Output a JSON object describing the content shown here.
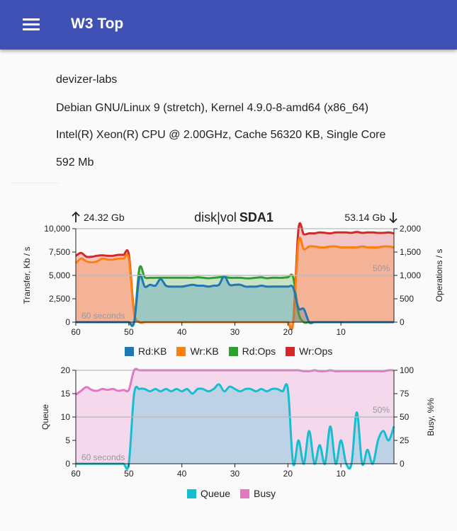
{
  "app": {
    "title": "W3 Top"
  },
  "info": [
    {
      "key": "host",
      "value": "devizer-labs"
    },
    {
      "key": "os",
      "value": "Debian GNU/Linux 9 (stretch), Kernel 4.9.0-8-amd64 (x86_64)"
    },
    {
      "key": "cpu",
      "value": "Intel(R) Xeon(R) CPU @ 2.00GHz, Cache 56320 KB, Single Core"
    },
    {
      "key": "ram",
      "value": "592 Mb"
    }
  ],
  "header": {
    "prefix": "disk|vol",
    "name": "SDA1",
    "read_total": "24.32 Gb",
    "write_total": "53.14 Gb"
  },
  "chart_data": [
    {
      "type": "area",
      "xlabel": "",
      "ylabel": "Transfer, Kb / s",
      "y2label": "Operations / s",
      "x": [
        60,
        59,
        58,
        57,
        56,
        55,
        54,
        53,
        52,
        51,
        50,
        49,
        48,
        47,
        46,
        45,
        44,
        43,
        42,
        41,
        40,
        39,
        38,
        37,
        36,
        35,
        34,
        33,
        32,
        31,
        30,
        29,
        28,
        27,
        26,
        25,
        24,
        23,
        22,
        21,
        20,
        19,
        18,
        17,
        16,
        15,
        14,
        13,
        12,
        11,
        10,
        9,
        8,
        7,
        6,
        5,
        4,
        3,
        2,
        1,
        0
      ],
      "xlim": [
        60,
        0
      ],
      "xticks": [
        60,
        50,
        40,
        30,
        20,
        10
      ],
      "ylim": [
        0,
        10000
      ],
      "yticks": [
        "0",
        "2,500",
        "5,000",
        "7,500",
        "10,000"
      ],
      "y2lim": [
        0,
        2000
      ],
      "y2ticks": [
        "0",
        "500",
        "1,000",
        "1,500",
        "2,000"
      ],
      "annotations": {
        "window": "60 seconds",
        "midline": "50%"
      },
      "legend_position": "bottom",
      "series": [
        {
          "name": "Rd:KB",
          "color": "#1f77b4",
          "axis": "left",
          "values": [
            0,
            0,
            0,
            0,
            0,
            0,
            0,
            0,
            0,
            0,
            0,
            0,
            4900,
            3800,
            4000,
            3900,
            4600,
            3900,
            3800,
            3800,
            3800,
            3900,
            4000,
            3900,
            3900,
            3800,
            3900,
            4000,
            4900,
            4000,
            4000,
            4000,
            3800,
            3800,
            3800,
            3900,
            3800,
            3800,
            3800,
            3800,
            3800,
            3700,
            1500,
            1400,
            0,
            0,
            0,
            0,
            0,
            0,
            0,
            0,
            0,
            0,
            0,
            0,
            0,
            0,
            0,
            0,
            0
          ]
        },
        {
          "name": "Wr:KB",
          "color": "#ff7f0e",
          "axis": "left",
          "values": [
            6300,
            6800,
            6500,
            6400,
            6500,
            6800,
            6700,
            6700,
            6800,
            6800,
            6800,
            1000,
            0,
            0,
            0,
            0,
            0,
            0,
            0,
            0,
            0,
            0,
            0,
            0,
            0,
            0,
            0,
            0,
            0,
            0,
            0,
            0,
            0,
            0,
            0,
            0,
            0,
            0,
            0,
            0,
            0,
            0,
            8600,
            7800,
            8100,
            8100,
            8000,
            8000,
            8100,
            8100,
            8000,
            8000,
            8000,
            8000,
            8100,
            8000,
            8000,
            8000,
            8100,
            8100,
            8000
          ]
        },
        {
          "name": "Rd:Ops",
          "color": "#2ca02c",
          "axis": "right",
          "values": [
            0,
            0,
            0,
            0,
            0,
            0,
            0,
            0,
            0,
            0,
            0,
            0,
            1150,
            960,
            950,
            950,
            950,
            950,
            950,
            950,
            950,
            950,
            950,
            960,
            950,
            940,
            950,
            960,
            970,
            950,
            950,
            950,
            940,
            940,
            950,
            960,
            940,
            950,
            950,
            950,
            960,
            960,
            200,
            0,
            0,
            0,
            0,
            0,
            0,
            0,
            0,
            0,
            0,
            0,
            0,
            0,
            0,
            0,
            0,
            0,
            0
          ]
        },
        {
          "name": "Wr:Ops",
          "color": "#d62728",
          "axis": "right",
          "values": [
            1420,
            1480,
            1400,
            1400,
            1420,
            1430,
            1420,
            1420,
            1440,
            1440,
            1450,
            200,
            0,
            0,
            0,
            0,
            0,
            0,
            0,
            0,
            0,
            0,
            0,
            0,
            0,
            0,
            0,
            0,
            0,
            0,
            0,
            0,
            0,
            0,
            0,
            0,
            0,
            0,
            0,
            0,
            0,
            0,
            2000,
            1880,
            1900,
            1900,
            1920,
            1910,
            1900,
            1920,
            1920,
            1920,
            1910,
            1930,
            1910,
            1920,
            1920,
            1910,
            1910,
            1920,
            1900
          ]
        }
      ]
    },
    {
      "type": "area",
      "xlabel": "",
      "ylabel": "Queue",
      "y2label": "Busy, %%",
      "x": [
        60,
        59,
        58,
        57,
        56,
        55,
        54,
        53,
        52,
        51,
        50,
        49,
        48,
        47,
        46,
        45,
        44,
        43,
        42,
        41,
        40,
        39,
        38,
        37,
        36,
        35,
        34,
        33,
        32,
        31,
        30,
        29,
        28,
        27,
        26,
        25,
        24,
        23,
        22,
        21,
        20,
        19,
        18,
        17,
        16,
        15,
        14,
        13,
        12,
        11,
        10,
        9,
        8,
        7,
        6,
        5,
        4,
        3,
        2,
        1,
        0
      ],
      "xlim": [
        60,
        0
      ],
      "xticks": [
        60,
        50,
        40,
        30,
        20,
        10
      ],
      "ylim": [
        0,
        20
      ],
      "yticks": [
        "0",
        "5",
        "10",
        "15",
        "20"
      ],
      "y2lim": [
        0,
        100
      ],
      "y2ticks": [
        "0",
        "25",
        "50",
        "75",
        "100"
      ],
      "annotations": {
        "window": "60 seconds",
        "midline": "50%"
      },
      "legend_position": "bottom",
      "series": [
        {
          "name": "Queue",
          "color": "#17becf",
          "axis": "left",
          "values": [
            0,
            0,
            0,
            0,
            0,
            0,
            0,
            0,
            0,
            0,
            0,
            15,
            16,
            16,
            15.5,
            16,
            15.5,
            16,
            15.5,
            16,
            15.5,
            16,
            15,
            16,
            16,
            15.5,
            16,
            17,
            15.5,
            16.5,
            16,
            15.5,
            16,
            16,
            15.5,
            16,
            15.5,
            16,
            16,
            15.5,
            16,
            0,
            5,
            0,
            7,
            0,
            4,
            0,
            8,
            0,
            5,
            0,
            0,
            11,
            0,
            3,
            0,
            5,
            7,
            5,
            8
          ]
        },
        {
          "name": "Busy",
          "color": "#e377c2",
          "axis": "right",
          "values": [
            74,
            78,
            82,
            79,
            78,
            80,
            79,
            80,
            78,
            79,
            79,
            100,
            100,
            100,
            100,
            100,
            100,
            100,
            100,
            100,
            100,
            100,
            100,
            100,
            100,
            100,
            100,
            100,
            100,
            100,
            100,
            100,
            100,
            100,
            100,
            100,
            100,
            100,
            100,
            100,
            100,
            100,
            100,
            99,
            99,
            100,
            99,
            99,
            100,
            99,
            99,
            99,
            99,
            99,
            99,
            99,
            99,
            99,
            99,
            100,
            100
          ]
        }
      ]
    }
  ]
}
